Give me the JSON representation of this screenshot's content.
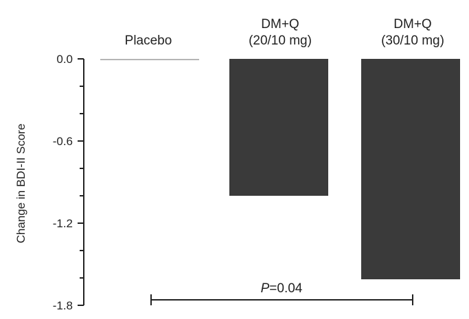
{
  "chart_data": {
    "type": "bar",
    "categories": [
      [
        "Placebo"
      ],
      [
        "DM+Q",
        "(20/10 mg)"
      ],
      [
        "DM+Q",
        "(30/10 mg)"
      ]
    ],
    "values": [
      -0.01,
      -1.0,
      -1.61
    ],
    "ylabel": "Change in BDI-II Score",
    "ylim": [
      -1.8,
      0.0
    ],
    "yticks": [
      0.0,
      -0.6,
      -1.2,
      -1.8
    ],
    "ytick_labels": [
      "0.0",
      "-0.6",
      "-1.2",
      "-1.8"
    ],
    "grid": false,
    "annotation": {
      "p_italic": "P",
      "p_value": "=0.04",
      "between": [
        "Placebo",
        "DM+Q (30/10 mg)"
      ]
    },
    "colors": {
      "bar": "#3a3a3a",
      "placebo": "#b5b5b5",
      "axis": "#222222"
    }
  }
}
